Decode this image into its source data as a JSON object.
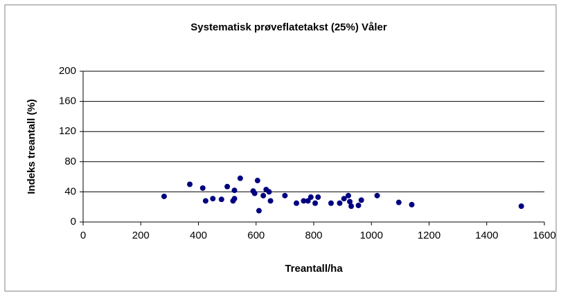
{
  "chart_data": {
    "type": "scatter",
    "title": "Systematisk prøveflatetakst (25%) Våler",
    "x_label": "Treantall/ha",
    "y_label": "Indeks treantall (%)",
    "color": "#000080",
    "grid": true,
    "x": [
      281,
      370,
      415,
      425,
      450,
      480,
      500,
      520,
      525,
      525,
      545,
      590,
      595,
      605,
      610,
      625,
      635,
      645,
      650,
      700,
      740,
      765,
      780,
      790,
      805,
      815,
      860,
      890,
      905,
      920,
      925,
      930,
      955,
      965,
      1020,
      1095,
      1140,
      1520
    ],
    "values": [
      34,
      50,
      45,
      28,
      31,
      30,
      47,
      28,
      31,
      42,
      58,
      41,
      38,
      55,
      15,
      35,
      43,
      40,
      28,
      35,
      25,
      28,
      28,
      33,
      25,
      33,
      25,
      25,
      31,
      35,
      27,
      21,
      22,
      29,
      35,
      26,
      23,
      21
    ],
    "xlim": [
      0,
      1600
    ],
    "xticks": [
      0,
      200,
      400,
      600,
      800,
      1000,
      1200,
      1400,
      1600
    ],
    "ylim": [
      0,
      200
    ],
    "yticks": [
      0,
      40,
      80,
      120,
      160,
      200
    ]
  }
}
